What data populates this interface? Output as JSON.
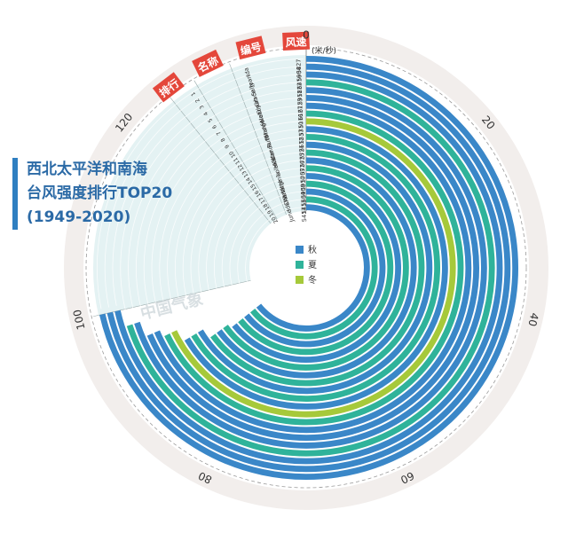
{
  "title": {
    "line1": "西北太平洋和南海",
    "line2": "台风强度排行TOP20",
    "line3": "(1949-2020)"
  },
  "watermark": "中国气象",
  "colors": {
    "autumn": "#3a87c8",
    "summer": "#2fb39a",
    "winter": "#a6c93a",
    "panel": "#e4f2f3",
    "outer_ring": "#f2eeec",
    "header_tag": "#e4473b",
    "title": "#2b6aa6",
    "axis_text": "#333333"
  },
  "chart_data": {
    "type": "radial-bar",
    "unit_label": "(米/秒)",
    "header_tags": [
      "排行",
      "名称",
      "编号",
      "风速"
    ],
    "axis_ticks": [
      0,
      20,
      40,
      60,
      80,
      100,
      120
    ],
    "axis_range": [
      0,
      140
    ],
    "legend": [
      {
        "label": "秋",
        "color_key": "autumn"
      },
      {
        "label": "夏",
        "color_key": "summer"
      },
      {
        "label": "冬",
        "color_key": "winter"
      }
    ],
    "rows": [
      {
        "rank": "1",
        "name": "Ida",
        "id": "5827",
        "speed": 100,
        "season": "autumn"
      },
      {
        "rank": "2",
        "name": "Joan",
        "id": "5904",
        "speed": 100,
        "season": "autumn"
      },
      {
        "rank": "3",
        "name": "Sally",
        "id": "6416",
        "speed": 100,
        "season": "autumn"
      },
      {
        "rank": "4",
        "name": "Grace",
        "id": "5822",
        "speed": 98,
        "season": "summer"
      },
      {
        "rank": "5",
        "name": "Dinah",
        "id": "5911",
        "speed": 98,
        "season": "autumn"
      },
      {
        "rank": "6",
        "name": "Nancy",
        "id": "6123",
        "speed": 96,
        "season": "autumn"
      },
      {
        "rank": "7",
        "name": "Violet",
        "id": "6127",
        "speed": 96,
        "season": "autumn"
      },
      {
        "rank": "8",
        "name": "Marge",
        "id": "5116",
        "speed": 95,
        "season": "summer"
      },
      {
        "rank": "9",
        "name": "Nina",
        "id": "5310",
        "speed": 95,
        "season": "winter"
      },
      {
        "rank": "10",
        "name": "Ruth",
        "id": "5537",
        "speed": 93,
        "season": "autumn"
      },
      {
        "rank": "11",
        "name": "Wanda",
        "id": "5612",
        "speed": 93,
        "season": "summer"
      },
      {
        "rank": "12",
        "name": "Hester",
        "id": "5721",
        "speed": 93,
        "season": "autumn"
      },
      {
        "rank": "13",
        "name": "Kit",
        "id": "5725",
        "speed": 91,
        "season": "summer"
      },
      {
        "rank": "14",
        "name": "Lola",
        "id": "5726",
        "speed": 91,
        "season": "autumn"
      },
      {
        "rank": "15",
        "name": "Virginia",
        "id": "5705",
        "speed": 91,
        "season": "summer"
      },
      {
        "rank": "16",
        "name": "Charlotte",
        "id": "5910",
        "speed": 90,
        "season": "autumn"
      },
      {
        "rank": "17",
        "name": "Vera",
        "id": "5908",
        "speed": 90,
        "season": "summer"
      },
      {
        "rank": "18",
        "name": "Kit",
        "id": "5604",
        "speed": 90,
        "season": "autumn"
      },
      {
        "rank": "19",
        "name": "Ida",
        "id": "5413",
        "speed": 90,
        "season": "summer"
      },
      {
        "rank": "20",
        "name": "June",
        "id": "5417",
        "speed": 90,
        "season": "autumn"
      }
    ]
  }
}
